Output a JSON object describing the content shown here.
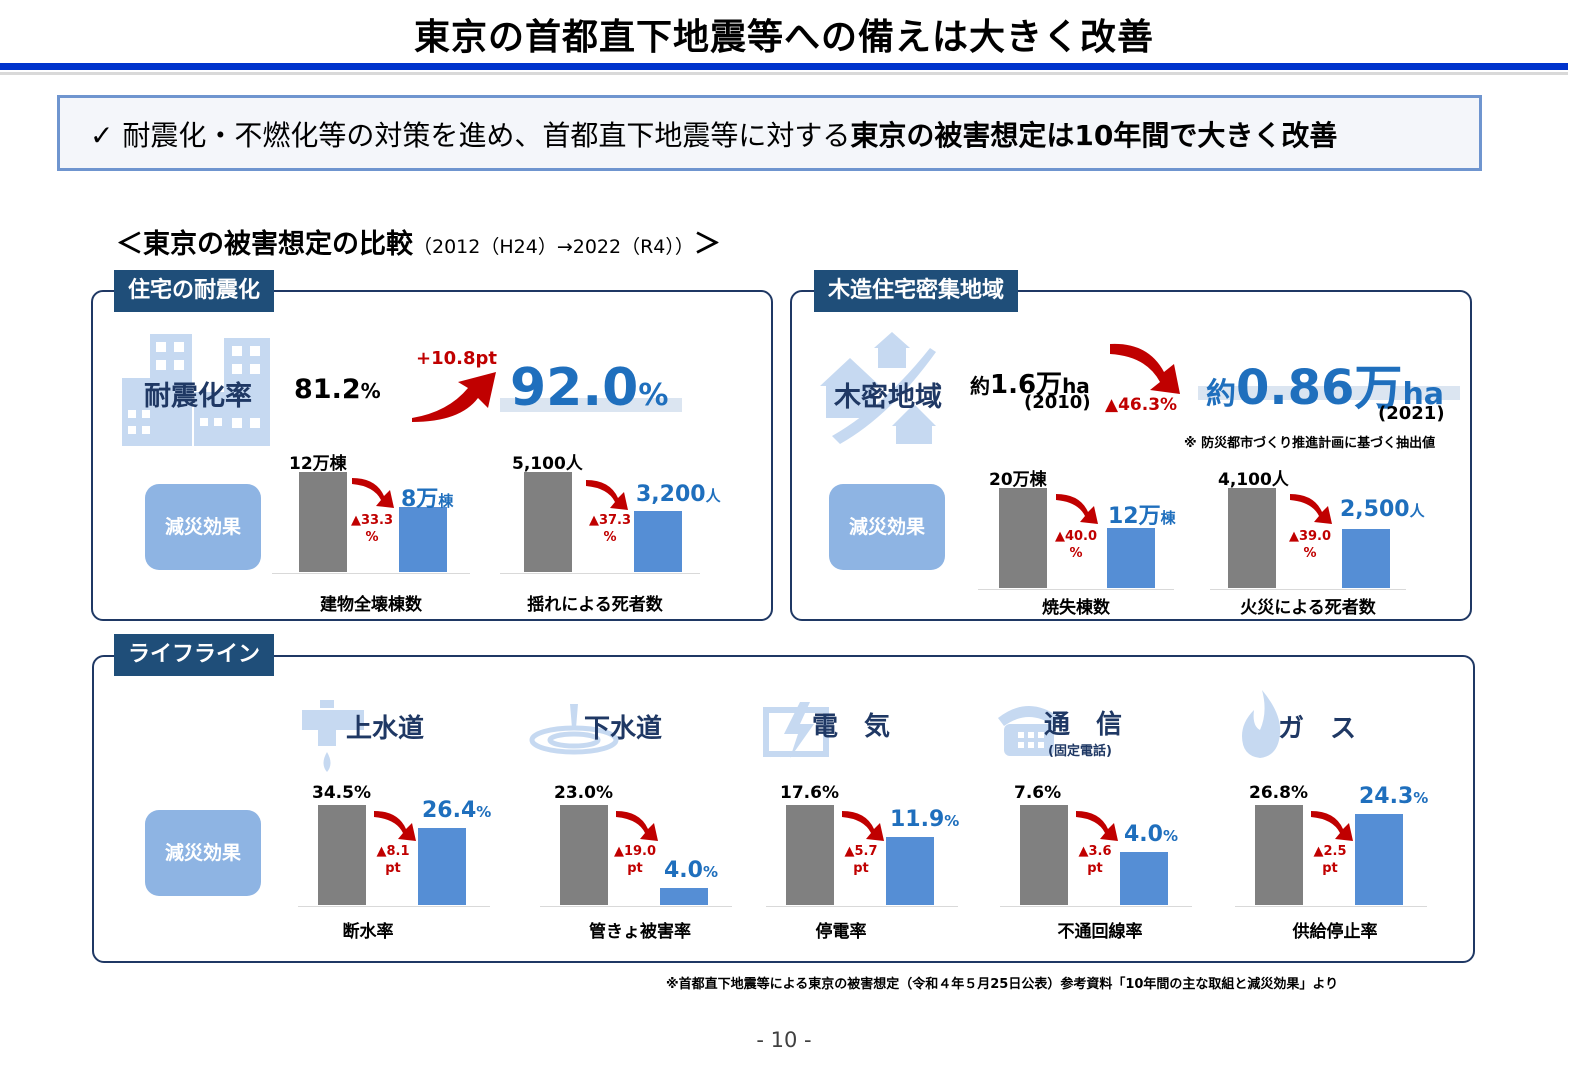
{
  "title": "東京の首都直下地震等への備えは大きく改善",
  "summary": {
    "check": "✓",
    "text_normal": "耐震化・不燃化等の対策を進め、首都直下地震等に対する",
    "text_bold": "東京の被害想定は10年間で大きく改善"
  },
  "comparison": {
    "heading": "＜東京の被害想定の比較",
    "period": "（2012（H24）→2022（R4））",
    "close": "＞"
  },
  "housing": {
    "tab": "住宅の耐震化",
    "metric_label": "耐震化率",
    "before_num": "81.2",
    "before_unit": "%",
    "delta": "+10.8pt",
    "after_num": "92.0",
    "after_unit": "%",
    "effect": "減災効果",
    "chart1": {
      "before": "12万棟",
      "after_num": "8万",
      "after_unit": "棟",
      "dec1": "▲33.3",
      "dec2": "%",
      "label": "建物全壊棟数",
      "values": [
        12,
        8
      ]
    },
    "chart2": {
      "before": "5,100人",
      "after_num": "3,200",
      "after_unit": "人",
      "dec1": "▲37.3",
      "dec2": "%",
      "label": "揺れによる死者数",
      "values": [
        5100,
        3200
      ]
    }
  },
  "wooden": {
    "tab": "木造住宅密集地域",
    "metric_label": "木密地域",
    "before_prefix": "約",
    "before_num": "1.6万",
    "before_unit": "ha",
    "before_year": "(2010)",
    "dec": "▲46.3%",
    "after_prefix": "約",
    "after_num": "0.86万",
    "after_unit": "ha",
    "after_year": "(2021)",
    "note": "※ 防災都市づくり推進計画に基づく抽出値",
    "effect": "減災効果",
    "chart1": {
      "before": "20万棟",
      "after_num": "12万",
      "after_unit": "棟",
      "dec1": "▲40.0",
      "dec2": "%",
      "label": "焼失棟数",
      "values": [
        20,
        12
      ]
    },
    "chart2": {
      "before": "4,100人",
      "after_num": "2,500",
      "after_unit": "人",
      "dec1": "▲39.0",
      "dec2": "%",
      "label": "火災による死者数",
      "values": [
        4100,
        2500
      ]
    }
  },
  "lifeline": {
    "tab": "ライフライン",
    "effect": "減災効果",
    "items": [
      {
        "title": "上水道",
        "before": "34.5%",
        "after_num": "26.4",
        "after_unit": "%",
        "dec1": "▲8.1",
        "dec2": "pt",
        "label": "断水率",
        "values": [
          34.5,
          26.4
        ]
      },
      {
        "title": "下水道",
        "before": "23.0%",
        "after_num": "4.0",
        "after_unit": "%",
        "dec1": "▲19.0",
        "dec2": "pt",
        "label": "管きょ被害率",
        "values": [
          23.0,
          4.0
        ]
      },
      {
        "title": "電　気",
        "before": "17.6%",
        "after_num": "11.9",
        "after_unit": "%",
        "dec1": "▲5.7",
        "dec2": "pt",
        "label": "停電率",
        "values": [
          17.6,
          11.9
        ]
      },
      {
        "title": "通　信",
        "subtitle": "(固定電話)",
        "before": "7.6%",
        "after_num": "4.0",
        "after_unit": "%",
        "dec1": "▲3.6",
        "dec2": "pt",
        "label": "不通回線率",
        "values": [
          7.6,
          4.0
        ]
      },
      {
        "title": "ガ　ス",
        "before": "26.8%",
        "after_num": "24.3",
        "after_unit": "%",
        "dec1": "▲2.5",
        "dec2": "pt",
        "label": "供給停止率",
        "values": [
          26.8,
          24.3
        ]
      }
    ]
  },
  "source": "※首都直下地震等による東京の被害想定（令和４年５月25日公表）参考資料「10年間の主な取組と減災効果」より",
  "page_number": "- 10 -",
  "colors": {
    "navy": "#1f4e79",
    "blue_bar": "#558ed5",
    "gray_bar": "#808080",
    "red": "#c00000",
    "accent_blue": "#1f6fbd"
  },
  "icons": [
    "building-icon",
    "houses-icon",
    "faucet-icon",
    "water-drop-icon",
    "electric-icon",
    "telephone-icon",
    "flame-icon"
  ]
}
